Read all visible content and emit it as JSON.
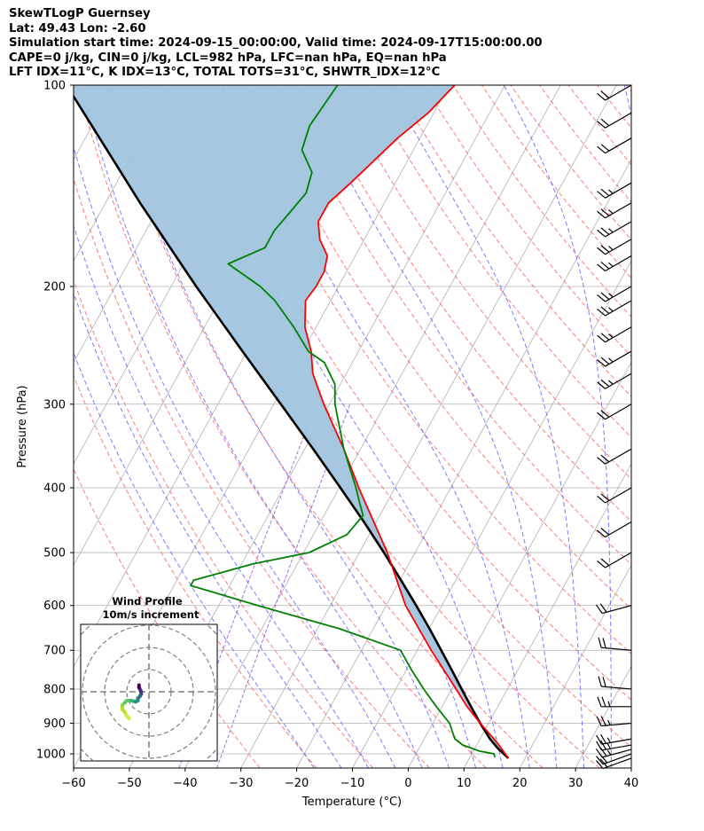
{
  "header": {
    "lines": [
      "SkewTLogP Guernsey",
      "Lat: 49.43   Lon: -2.60",
      "Simulation start time: 2024-09-15_00:00:00, Valid time: 2024-09-17T15:00:00.00",
      "CAPE=0 j/kg, CIN=0 j/kg, LCL=982 hPa, LFC=nan hPa, EQ=nan hPa",
      "LFT IDX=11$^\\circ$C, K IDX=13$^\\circ$C, TOTAL TOTS=31$^\\circ$C, SHWTR_IDX=12$^\\circ$C"
    ],
    "lines_display": [
      "SkewTLogP Guernsey",
      "Lat: 49.43   Lon: -2.60",
      "Simulation start time: 2024-09-15_00:00:00, Valid time: 2024-09-17T15:00:00.00",
      "CAPE=0 j/kg, CIN=0 j/kg, LCL=982 hPa, LFC=nan hPa, EQ=nan hPa",
      "LFT IDX=11°C, K IDX=13°C, TOTAL TOTS=31°C, SHWTR_IDX=12°C"
    ]
  },
  "colors": {
    "temperature": "#ff0000",
    "dewpoint": "#008000",
    "parcel": "#000000",
    "shade": "#a0c4de",
    "dry_adiabat": "#ff6464",
    "moist_adiabat": "#6464ff",
    "mixing_ratio": "#9955dd",
    "isotherm": "#b0b0b0"
  },
  "chart_data": {
    "type": "skewt",
    "title": "SkewTLogP Guernsey",
    "xlabel": "Temperature ($^\\circ$C)",
    "xlabel_display": "Temperature (°C)",
    "ylabel": "Pressure (hPa)",
    "xlim": [
      -60,
      40
    ],
    "ylim": [
      1050,
      100
    ],
    "x_ticks": [
      -60,
      -50,
      -40,
      -30,
      -20,
      -10,
      0,
      10,
      20,
      30,
      40
    ],
    "x_tick_labels": [
      "−60",
      "−50",
      "−40",
      "−30",
      "−20",
      "−10",
      "0",
      "10",
      "20",
      "30",
      "40"
    ],
    "y_ticks": [
      1000,
      900,
      800,
      700,
      600,
      500,
      400,
      300,
      200,
      100
    ],
    "y_tick_labels": [
      "1000",
      "900",
      "800",
      "700",
      "600",
      "500",
      "400",
      "300",
      "200",
      "100"
    ],
    "grid": true,
    "series": [
      {
        "name": "temperature",
        "p": [
          1015,
          1000,
          970,
          950,
          900,
          850,
          800,
          700,
          600,
          500,
          400,
          350,
          300,
          270,
          250,
          230,
          210,
          200,
          190,
          180,
          170,
          160,
          150,
          140,
          120,
          110,
          100
        ],
        "t": [
          17,
          16,
          14,
          12.5,
          8.5,
          4.5,
          0.8,
          -7.5,
          -16.5,
          -25,
          -36.5,
          -43,
          -51,
          -56,
          -58.5,
          -62,
          -64.5,
          -64,
          -64,
          -65,
          -68,
          -70,
          -70,
          -68,
          -64,
          -61,
          -59
        ]
      },
      {
        "name": "dewpoint",
        "p": [
          1012,
          1000,
          990,
          970,
          950,
          900,
          850,
          800,
          750,
          700,
          650,
          600,
          560,
          550,
          520,
          500,
          470,
          440,
          420,
          400,
          350,
          300,
          280,
          260,
          250,
          230,
          210,
          200,
          185,
          175,
          165,
          155,
          145,
          135,
          125,
          115,
          100
        ],
        "t": [
          14.5,
          14,
          11,
          7.5,
          5.5,
          3,
          -1,
          -5,
          -9,
          -13,
          -26,
          -43,
          -57,
          -57,
          -48,
          -39,
          -34,
          -33,
          -35,
          -37,
          -43,
          -49,
          -51,
          -55,
          -59,
          -64,
          -70,
          -74,
          -82,
          -77,
          -77,
          -76,
          -75,
          -76,
          -80,
          -81,
          -80
        ]
      },
      {
        "name": "parcel",
        "p": [
          1015,
          982,
          950,
          900,
          850,
          800,
          750,
          700,
          650,
          600,
          550,
          500,
          450,
          400,
          350,
          300,
          250,
          200,
          150,
          100
        ],
        "t": [
          17,
          14.2,
          11.8,
          8.5,
          5.2,
          1.8,
          -1.8,
          -5.7,
          -9.9,
          -14.6,
          -19.8,
          -25.6,
          -32.2,
          -39.8,
          -48.5,
          -58.7,
          -70.8,
          -85.5,
          -103.8,
          -128.6
        ]
      }
    ],
    "shaded_region": "between temperature and parcel profiles",
    "wind_barbs": {
      "p": [
        1015,
        1000,
        985,
        970,
        950,
        900,
        850,
        800,
        700,
        600,
        500,
        450,
        400,
        350,
        300,
        270,
        250,
        230,
        210,
        200,
        180,
        170,
        160,
        150,
        140,
        120,
        110,
        100
      ],
      "speed_kt": [
        20,
        20,
        25,
        25,
        25,
        25,
        25,
        20,
        20,
        20,
        20,
        20,
        20,
        20,
        20,
        25,
        25,
        25,
        25,
        25,
        25,
        25,
        25,
        25,
        25,
        20,
        20,
        20
      ],
      "dir_deg": [
        250,
        250,
        255,
        260,
        260,
        265,
        270,
        275,
        275,
        255,
        240,
        240,
        240,
        240,
        240,
        240,
        240,
        240,
        240,
        240,
        240,
        240,
        240,
        240,
        240,
        240,
        240,
        240
      ]
    },
    "hodograph": {
      "title": "Wind Profile",
      "subtitle": "10m/s increment",
      "rings": 4,
      "points_u": [
        -9,
        -10,
        -11,
        -12,
        -12,
        -11,
        -10,
        -8,
        -6,
        -5,
        -5,
        -4,
        -3.5,
        -3.5,
        -4,
        -4.5,
        -4.5
      ],
      "points_v": [
        -12,
        -11,
        -9,
        -8,
        -6,
        -5,
        -4,
        -4,
        -4.5,
        -4,
        -3,
        -2,
        -1,
        0,
        1,
        2,
        3
      ]
    }
  }
}
